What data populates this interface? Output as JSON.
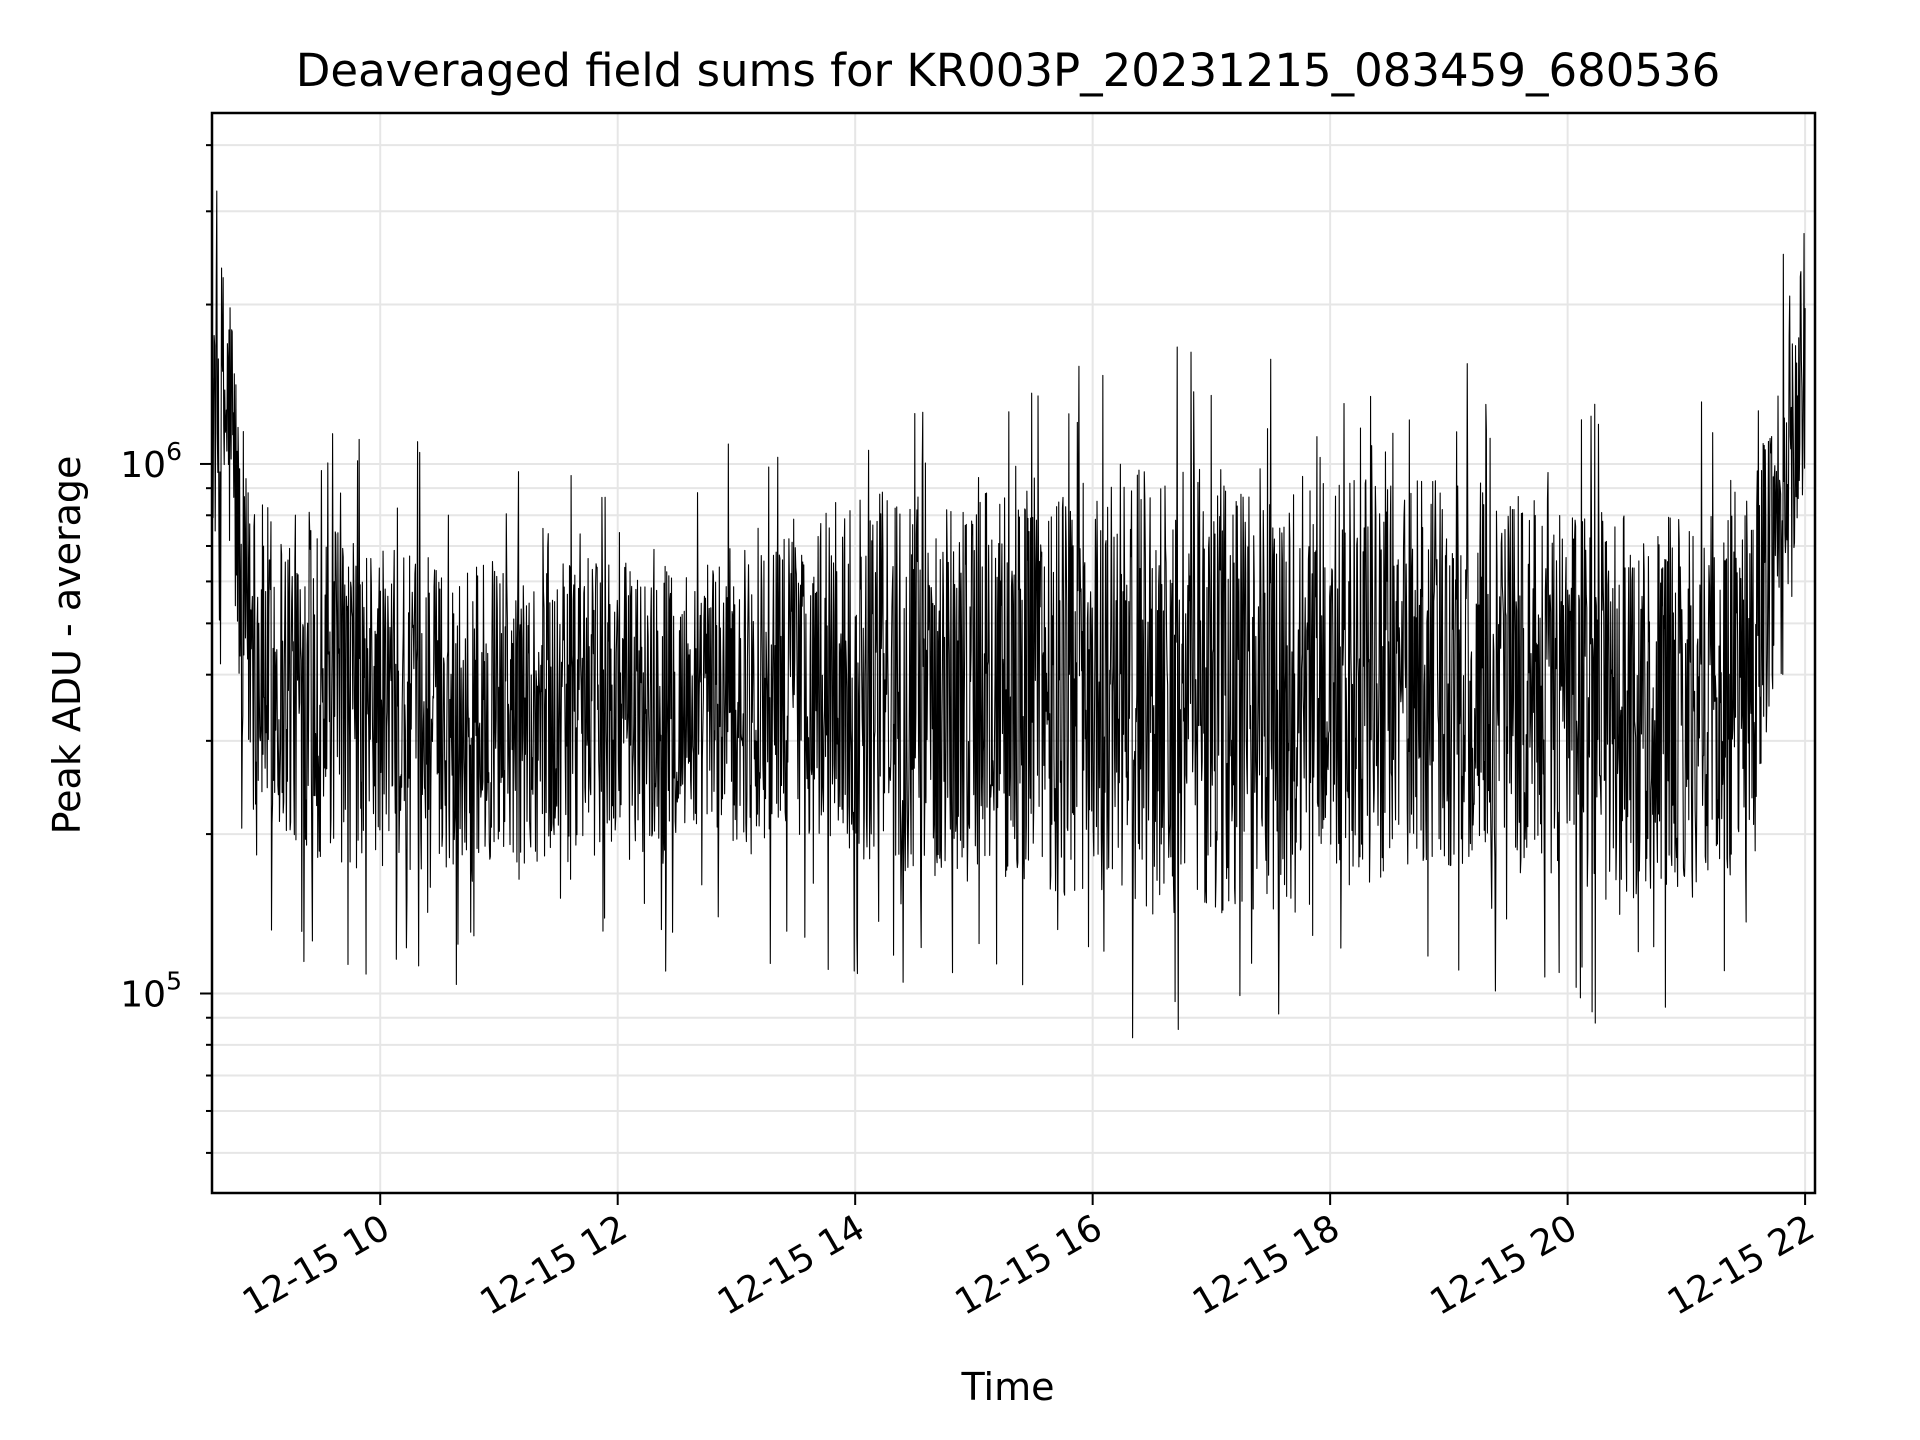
{
  "chart_data": {
    "type": "line",
    "title": "Deaveraged field sums for KR003P_20231215_083459_680536",
    "xlabel": "Time",
    "ylabel": "Peak ADU - average",
    "y_scale": "log",
    "ylim": [
      42000,
      4600000
    ],
    "xlim": [
      "2023-12-15 08:35",
      "2023-12-15 22:05"
    ],
    "grid": true,
    "line_color": "#000000",
    "x_ticks": [
      "12-15 10",
      "12-15 12",
      "12-15 14",
      "12-15 16",
      "12-15 18",
      "12-15 20",
      "12-15 22"
    ],
    "y_ticks": [
      {
        "base": "10",
        "exponent": "5",
        "value": 100000
      },
      {
        "base": "10",
        "exponent": "6",
        "value": 1000000
      }
    ],
    "series": [
      {
        "x": [
          "2023-12-15 08:35",
          "2023-12-15 08:40",
          "2023-12-15 08:45",
          "2023-12-15 08:50",
          "2023-12-15 09:00",
          "2023-12-15 09:20",
          "2023-12-15 09:40",
          "2023-12-15 10:00",
          "2023-12-15 10:30",
          "2023-12-15 11:00",
          "2023-12-15 11:30",
          "2023-12-15 12:00",
          "2023-12-15 12:30",
          "2023-12-15 13:00",
          "2023-12-15 13:30",
          "2023-12-15 14:00",
          "2023-12-15 14:30",
          "2023-12-15 15:00",
          "2023-12-15 15:30",
          "2023-12-15 16:00",
          "2023-12-15 16:30",
          "2023-12-15 17:00",
          "2023-12-15 17:30",
          "2023-12-15 18:00",
          "2023-12-15 18:30",
          "2023-12-15 19:00",
          "2023-12-15 19:30",
          "2023-12-15 20:00",
          "2023-12-15 20:30",
          "2023-12-15 21:00",
          "2023-12-15 21:30",
          "2023-12-15 21:45",
          "2023-12-15 21:55",
          "2023-12-15 22:00"
        ],
        "low": [
          700000,
          650000,
          600000,
          300000,
          200000,
          180000,
          170000,
          170000,
          170000,
          175000,
          175000,
          180000,
          185000,
          190000,
          200000,
          180000,
          170000,
          160000,
          160000,
          150000,
          140000,
          140000,
          140000,
          150000,
          160000,
          170000,
          170000,
          160000,
          150000,
          150000,
          170000,
          400000,
          600000,
          800000
        ],
        "high": [
          2200000,
          2500000,
          2300000,
          1000000,
          850000,
          800000,
          750000,
          700000,
          650000,
          650000,
          650000,
          650000,
          650000,
          700000,
          750000,
          900000,
          900000,
          950000,
          950000,
          1000000,
          1050000,
          1000000,
          950000,
          950000,
          950000,
          950000,
          900000,
          850000,
          800000,
          800000,
          850000,
          1500000,
          2000000,
          3000000
        ]
      }
    ]
  }
}
